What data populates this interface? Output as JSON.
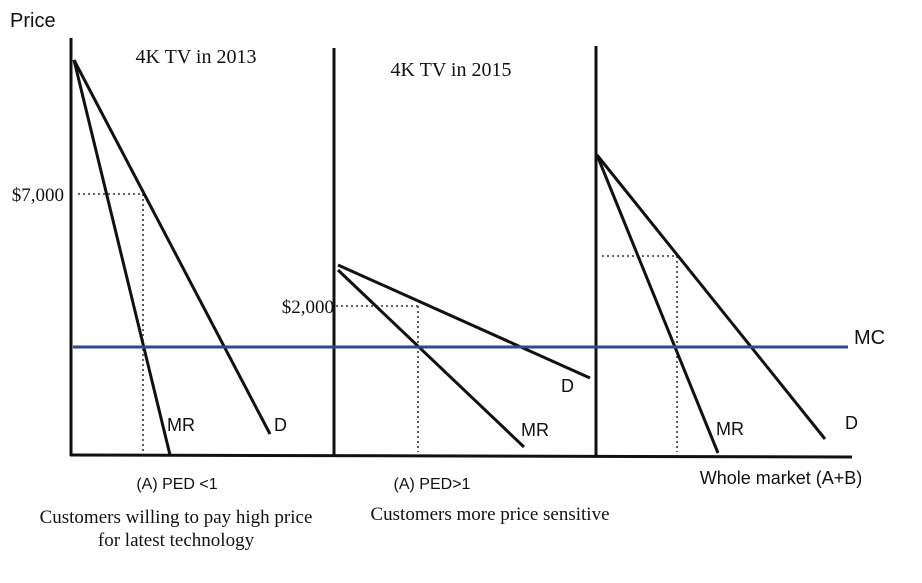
{
  "y_axis_label": "Price",
  "panels": [
    {
      "title": "4K TV in 2013",
      "price_label": "$7,000",
      "mr_label": "MR",
      "d_label": "D",
      "ped_label": "(A) PED <1",
      "caption_line1": "Customers willing to pay high price",
      "caption_line2": "for latest technology"
    },
    {
      "title": "4K TV in 2015",
      "price_label": "$2,000",
      "mr_label": "MR",
      "d_label": "D",
      "ped_label": "(A) PED>1",
      "caption_line1": "Customers more  price sensitive"
    },
    {
      "mr_label": "MR",
      "d_label": "D",
      "ped_label": "Whole market (A+B)"
    }
  ],
  "mc_label": "MC",
  "colors": {
    "mc_line": "#2e4a8a",
    "curves": "#111111"
  }
}
